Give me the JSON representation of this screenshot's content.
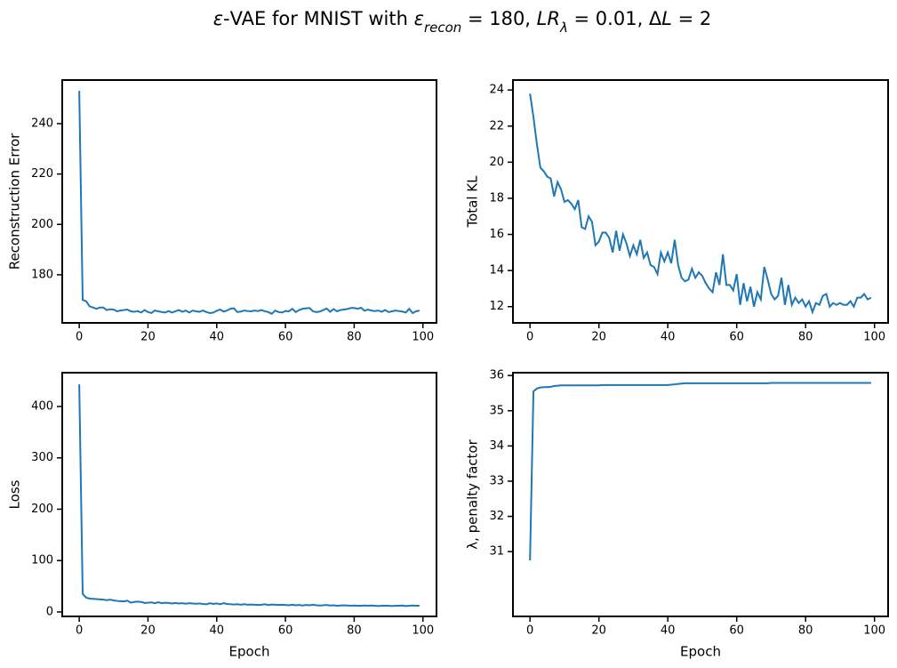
{
  "suptitle": [
    {
      "text": "ε",
      "style": "italic"
    },
    {
      "text": "-VAE for MNIST with ",
      "style": "normal"
    },
    {
      "text": "ε",
      "style": "italic"
    },
    {
      "text": "recon",
      "style": "sub"
    },
    {
      "text": " =  180, ",
      "style": "normal"
    },
    {
      "text": "LR",
      "style": "italic"
    },
    {
      "text": "λ",
      "style": "sub"
    },
    {
      "text": " =  0.01, Δ",
      "style": "normal"
    },
    {
      "text": "L",
      "style": "italic"
    },
    {
      "text": " =  2",
      "style": "normal"
    }
  ],
  "chart_data": [
    {
      "type": "line",
      "ylabel": "Reconstruction Error",
      "x": [
        0,
        1,
        2,
        3,
        4,
        5,
        6,
        7,
        8,
        9,
        10,
        11,
        12,
        13,
        14,
        15,
        16,
        17,
        18,
        19,
        20,
        21,
        22,
        23,
        24,
        25,
        26,
        27,
        28,
        29,
        30,
        31,
        32,
        33,
        34,
        35,
        36,
        37,
        38,
        39,
        40,
        41,
        42,
        43,
        44,
        45,
        46,
        47,
        48,
        49,
        50,
        51,
        52,
        53,
        54,
        55,
        56,
        57,
        58,
        59,
        60,
        61,
        62,
        63,
        64,
        65,
        66,
        67,
        68,
        69,
        70,
        71,
        72,
        73,
        74,
        75,
        76,
        77,
        78,
        79,
        80,
        81,
        82,
        83,
        84,
        85,
        86,
        87,
        88,
        89,
        90,
        91,
        92,
        93,
        94,
        95,
        96,
        97,
        98,
        99
      ],
      "series": [
        {
          "color": "#1f77b4",
          "values": [
            253,
            170,
            169.5,
            167.5,
            167,
            166.5,
            167,
            167,
            166,
            166.3,
            166.2,
            165.5,
            165.8,
            166,
            166.2,
            165.5,
            165.3,
            165.6,
            165,
            166,
            165.2,
            164.8,
            165.8,
            165.5,
            165.2,
            165,
            165.6,
            165,
            165.5,
            166,
            165.3,
            165.8,
            165,
            165.8,
            165.5,
            165.3,
            165.8,
            165.2,
            164.8,
            165,
            165.7,
            166.2,
            165.4,
            165.8,
            166.5,
            166.7,
            165.2,
            165.4,
            165.8,
            165.6,
            165.5,
            165.8,
            165.6,
            166,
            165.5,
            165.2,
            164.5,
            165.8,
            165.2,
            165,
            165.6,
            165.5,
            166.5,
            165.2,
            166,
            166.5,
            166.7,
            166.8,
            165.5,
            165.2,
            165.4,
            166,
            166.6,
            165.3,
            166.4,
            165.5,
            166,
            166.2,
            166.4,
            166.8,
            166.8,
            166.5,
            166.9,
            165.7,
            166.2,
            165.8,
            165.6,
            165.8,
            165.3,
            166,
            165.2,
            165.5,
            165.8,
            165.6,
            165.4,
            165,
            166.5,
            164.8,
            165.5,
            165.8
          ]
        }
      ],
      "xlim": [
        -4.95,
        103.95
      ],
      "xticks": [
        0,
        20,
        40,
        60,
        80,
        100
      ],
      "ylim": [
        160.9,
        257.3
      ],
      "yticks": [
        180,
        200,
        220,
        240
      ]
    },
    {
      "type": "line",
      "ylabel": "Total KL",
      "x": [
        0,
        1,
        2,
        3,
        4,
        5,
        6,
        7,
        8,
        9,
        10,
        11,
        12,
        13,
        14,
        15,
        16,
        17,
        18,
        19,
        20,
        21,
        22,
        23,
        24,
        25,
        26,
        27,
        28,
        29,
        30,
        31,
        32,
        33,
        34,
        35,
        36,
        37,
        38,
        39,
        40,
        41,
        42,
        43,
        44,
        45,
        46,
        47,
        48,
        49,
        50,
        51,
        52,
        53,
        54,
        55,
        56,
        57,
        58,
        59,
        60,
        61,
        62,
        63,
        64,
        65,
        66,
        67,
        68,
        69,
        70,
        71,
        72,
        73,
        74,
        75,
        76,
        77,
        78,
        79,
        80,
        81,
        82,
        83,
        84,
        85,
        86,
        87,
        88,
        89,
        90,
        91,
        92,
        93,
        94,
        95,
        96,
        97,
        98,
        99
      ],
      "series": [
        {
          "color": "#1f77b4",
          "values": [
            23.8,
            22.5,
            21.0,
            19.7,
            19.5,
            19.2,
            19.1,
            18.1,
            18.9,
            18.5,
            17.8,
            17.9,
            17.7,
            17.4,
            17.9,
            16.4,
            16.3,
            17.0,
            16.7,
            15.4,
            15.6,
            16.1,
            16.1,
            15.8,
            15.0,
            16.2,
            15.1,
            16.0,
            15.5,
            14.8,
            15.4,
            14.9,
            15.7,
            14.7,
            15.0,
            14.3,
            14.2,
            13.8,
            15.0,
            14.5,
            15.0,
            14.4,
            15.7,
            14.3,
            13.6,
            13.4,
            13.5,
            14.1,
            13.6,
            13.9,
            13.7,
            13.3,
            13.0,
            12.8,
            13.9,
            13.2,
            14.9,
            13.2,
            13.2,
            12.9,
            13.8,
            12.1,
            13.3,
            12.3,
            13.1,
            12.0,
            12.8,
            12.4,
            14.2,
            13.5,
            12.7,
            12.4,
            12.6,
            13.6,
            12.1,
            13.2,
            12.1,
            12.5,
            12.2,
            12.4,
            12.0,
            12.3,
            11.7,
            12.2,
            12.1,
            12.6,
            12.7,
            12.0,
            12.2,
            12.1,
            12.2,
            12.1,
            12.1,
            12.3,
            12.0,
            12.5,
            12.5,
            12.7,
            12.4,
            12.5
          ]
        }
      ],
      "xlim": [
        -4.95,
        103.95
      ],
      "xticks": [
        0,
        20,
        40,
        60,
        80,
        100
      ],
      "ylim": [
        11.1,
        24.55
      ],
      "yticks": [
        12,
        14,
        16,
        18,
        20,
        22,
        24
      ]
    },
    {
      "type": "line",
      "ylabel": "Loss",
      "xlabel": "Epoch",
      "x": [
        0,
        1,
        2,
        3,
        4,
        5,
        6,
        7,
        8,
        9,
        10,
        11,
        12,
        13,
        14,
        15,
        16,
        17,
        18,
        19,
        20,
        21,
        22,
        23,
        24,
        25,
        26,
        27,
        28,
        29,
        30,
        31,
        32,
        33,
        34,
        35,
        36,
        37,
        38,
        39,
        40,
        41,
        42,
        43,
        44,
        45,
        46,
        47,
        48,
        49,
        50,
        51,
        52,
        53,
        54,
        55,
        56,
        57,
        58,
        59,
        60,
        61,
        62,
        63,
        64,
        65,
        66,
        67,
        68,
        69,
        70,
        71,
        72,
        73,
        74,
        75,
        76,
        77,
        78,
        79,
        80,
        81,
        82,
        83,
        84,
        85,
        86,
        87,
        88,
        89,
        90,
        91,
        92,
        93,
        94,
        95,
        96,
        97,
        98,
        99
      ],
      "series": [
        {
          "color": "#1f77b4",
          "values": [
            443,
            35,
            28,
            26,
            25.5,
            25,
            24.5,
            24,
            23,
            24,
            22.5,
            21.5,
            21,
            20.5,
            22,
            18,
            19.5,
            20,
            19.5,
            17.5,
            18,
            18.5,
            17,
            19,
            17,
            18,
            17.5,
            16.5,
            17.5,
            16.5,
            17,
            16,
            17,
            16.5,
            16,
            16.5,
            15.5,
            15,
            17,
            15.5,
            16.5,
            15,
            17,
            15.5,
            15,
            14.5,
            15,
            14,
            15,
            14,
            14.5,
            14,
            13.5,
            14,
            15,
            13.5,
            14.5,
            14,
            13.5,
            14,
            13.5,
            13,
            14,
            13,
            13.5,
            12.5,
            13.5,
            13,
            14,
            13,
            12.5,
            13,
            13.5,
            12.5,
            13,
            12,
            12.5,
            13,
            12.5,
            12,
            12.5,
            12,
            12,
            12.5,
            12,
            12.5,
            12,
            11.5,
            12,
            12,
            12,
            11.5,
            12,
            12,
            12.5,
            11.5,
            12,
            12.5,
            12,
            12
          ]
        }
      ],
      "xlim": [
        -4.95,
        103.95
      ],
      "xticks": [
        0,
        20,
        40,
        60,
        80,
        100
      ],
      "ylim": [
        -8.7,
        465.8
      ],
      "yticks": [
        0,
        100,
        200,
        300,
        400
      ]
    },
    {
      "type": "line",
      "ylabel": "λ, penalty factor",
      "xlabel": "Epoch",
      "x": [
        0,
        1,
        2,
        3,
        4,
        5,
        6,
        7,
        8,
        9,
        10,
        11,
        12,
        13,
        14,
        15,
        16,
        17,
        18,
        19,
        20,
        21,
        22,
        23,
        24,
        25,
        26,
        27,
        28,
        29,
        30,
        31,
        32,
        33,
        34,
        35,
        36,
        37,
        38,
        39,
        40,
        41,
        42,
        43,
        44,
        45,
        46,
        47,
        48,
        49,
        50,
        51,
        52,
        53,
        54,
        55,
        56,
        57,
        58,
        59,
        60,
        61,
        62,
        63,
        64,
        65,
        66,
        67,
        68,
        69,
        70,
        71,
        72,
        73,
        74,
        75,
        76,
        77,
        78,
        79,
        80,
        81,
        82,
        83,
        84,
        85,
        86,
        87,
        88,
        89,
        90,
        91,
        92,
        93,
        94,
        95,
        96,
        97,
        98,
        99
      ],
      "series": [
        {
          "color": "#1f77b4",
          "values": [
            30.75,
            35.55,
            35.63,
            35.66,
            35.67,
            35.67,
            35.68,
            35.7,
            35.71,
            35.72,
            35.72,
            35.72,
            35.72,
            35.72,
            35.72,
            35.72,
            35.72,
            35.72,
            35.72,
            35.72,
            35.72,
            35.73,
            35.73,
            35.73,
            35.73,
            35.73,
            35.73,
            35.73,
            35.73,
            35.73,
            35.73,
            35.73,
            35.73,
            35.73,
            35.73,
            35.73,
            35.73,
            35.73,
            35.73,
            35.73,
            35.73,
            35.74,
            35.75,
            35.76,
            35.77,
            35.78,
            35.78,
            35.78,
            35.78,
            35.78,
            35.78,
            35.78,
            35.78,
            35.78,
            35.78,
            35.78,
            35.78,
            35.78,
            35.78,
            35.78,
            35.78,
            35.78,
            35.78,
            35.78,
            35.78,
            35.78,
            35.78,
            35.78,
            35.78,
            35.78,
            35.79,
            35.79,
            35.79,
            35.79,
            35.79,
            35.79,
            35.79,
            35.79,
            35.79,
            35.79,
            35.79,
            35.79,
            35.79,
            35.79,
            35.79,
            35.79,
            35.79,
            35.79,
            35.79,
            35.79,
            35.79,
            35.79,
            35.79,
            35.79,
            35.79,
            35.79,
            35.79,
            35.79,
            35.79,
            35.79
          ]
        }
      ],
      "xlim": [
        -4.95,
        103.95
      ],
      "xticks": [
        0,
        20,
        40,
        60,
        80,
        100
      ],
      "ylim": [
        29.16,
        36.08
      ],
      "yticks": [
        31,
        32,
        33,
        34,
        35,
        36
      ]
    }
  ]
}
